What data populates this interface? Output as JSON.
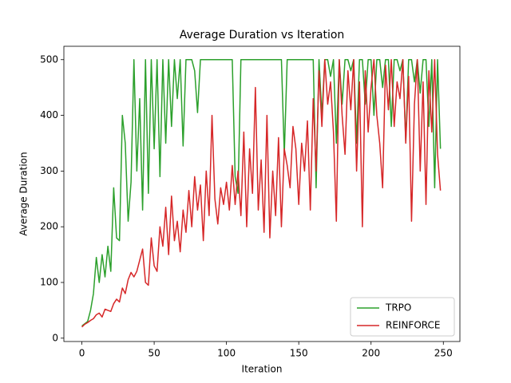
{
  "chart_data": {
    "type": "line",
    "title": "Average Duration vs Iteration",
    "x_label": "Iteration",
    "y_label": "Average Duration",
    "x": [
      0,
      2,
      4,
      6,
      8,
      10,
      12,
      14,
      16,
      18,
      20,
      22,
      24,
      26,
      28,
      30,
      32,
      34,
      36,
      38,
      40,
      42,
      44,
      46,
      48,
      50,
      52,
      54,
      56,
      58,
      60,
      62,
      64,
      66,
      68,
      70,
      72,
      74,
      76,
      78,
      80,
      82,
      84,
      86,
      88,
      90,
      92,
      94,
      96,
      98,
      100,
      102,
      104,
      106,
      108,
      110,
      112,
      114,
      116,
      118,
      120,
      122,
      124,
      126,
      128,
      130,
      132,
      134,
      136,
      138,
      140,
      142,
      144,
      146,
      148,
      150,
      152,
      154,
      156,
      158,
      160,
      162,
      164,
      166,
      168,
      170,
      172,
      174,
      176,
      178,
      180,
      182,
      184,
      186,
      188,
      190,
      192,
      194,
      196,
      198,
      200,
      202,
      204,
      206,
      208,
      210,
      212,
      214,
      216,
      218,
      220,
      222,
      224,
      226,
      228,
      230,
      232,
      234,
      236,
      238,
      240,
      242,
      244,
      246,
      248
    ],
    "series": [
      {
        "name": "TRPO",
        "color": "#2ca02c",
        "values": [
          22,
          26,
          30,
          50,
          80,
          145,
          100,
          150,
          110,
          165,
          120,
          270,
          180,
          175,
          400,
          350,
          210,
          280,
          500,
          300,
          430,
          230,
          500,
          260,
          500,
          340,
          500,
          290,
          500,
          350,
          500,
          380,
          500,
          430,
          500,
          345,
          500,
          500,
          500,
          480,
          405,
          500,
          500,
          500,
          500,
          500,
          500,
          500,
          500,
          500,
          500,
          500,
          500,
          290,
          260,
          500,
          500,
          500,
          500,
          500,
          500,
          500,
          500,
          500,
          500,
          500,
          500,
          500,
          500,
          500,
          330,
          500,
          500,
          500,
          500,
          500,
          500,
          500,
          500,
          500,
          500,
          270,
          500,
          400,
          500,
          500,
          470,
          500,
          350,
          500,
          420,
          500,
          500,
          480,
          500,
          350,
          500,
          500,
          420,
          500,
          500,
          400,
          500,
          500,
          450,
          500,
          500,
          380,
          500,
          500,
          480,
          500,
          355,
          500,
          500,
          460,
          500,
          440,
          500,
          500,
          380,
          500,
          270,
          500,
          340
        ]
      },
      {
        "name": "REINFORCE",
        "color": "#d62728",
        "values": [
          20,
          25,
          28,
          32,
          35,
          42,
          45,
          38,
          52,
          50,
          48,
          62,
          70,
          65,
          90,
          80,
          105,
          118,
          110,
          120,
          140,
          160,
          100,
          95,
          180,
          130,
          120,
          200,
          165,
          235,
          150,
          255,
          175,
          210,
          155,
          230,
          190,
          265,
          200,
          290,
          230,
          275,
          175,
          300,
          220,
          400,
          250,
          205,
          270,
          240,
          280,
          230,
          310,
          240,
          300,
          220,
          370,
          200,
          340,
          260,
          450,
          230,
          320,
          190,
          400,
          180,
          300,
          220,
          360,
          200,
          340,
          310,
          270,
          380,
          340,
          240,
          350,
          300,
          390,
          230,
          430,
          300,
          480,
          380,
          500,
          420,
          460,
          370,
          210,
          500,
          400,
          330,
          480,
          410,
          500,
          300,
          460,
          200,
          480,
          370,
          450,
          500,
          400,
          350,
          270,
          490,
          410,
          500,
          380,
          460,
          430,
          500,
          350,
          470,
          210,
          420,
          500,
          300,
          460,
          240,
          480,
          370,
          500,
          330,
          265
        ]
      }
    ],
    "xlim": [
      -12.45,
      261.45
    ],
    "ylim": [
      -6,
      524
    ],
    "xticks": [
      0,
      50,
      100,
      150,
      200,
      250
    ],
    "yticks": [
      0,
      100,
      200,
      300,
      400,
      500
    ],
    "legend": "lower right"
  }
}
